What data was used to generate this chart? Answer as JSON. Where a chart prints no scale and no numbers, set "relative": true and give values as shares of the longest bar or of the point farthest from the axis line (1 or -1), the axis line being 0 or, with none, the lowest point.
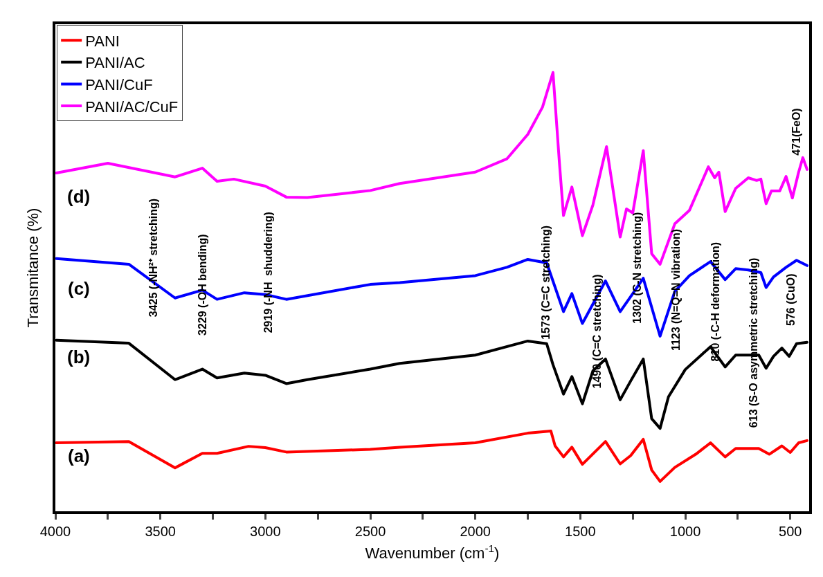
{
  "chart_data": {
    "type": "line",
    "relative": true,
    "xlabel": "Wavenumber (cm$^{-1}$)",
    "ylabel": "Transmitance (%)",
    "xlim": [
      4000,
      410
    ],
    "xticks": [
      4000,
      {
        "value": 3750,
        "label": null
      },
      3500,
      {
        "value": 3250,
        "label": null
      },
      3000,
      {
        "value": 2750,
        "label": null
      },
      2500,
      {
        "value": 2250,
        "label": null
      },
      2000,
      {
        "value": 1750,
        "label": null
      },
      1500,
      {
        "value": 1250,
        "label": null
      },
      1000,
      {
        "value": 750,
        "label": null
      },
      500
    ],
    "tick_labels": "x",
    "legend": "top left",
    "marker": "none",
    "line_style": "solid",
    "series": [
      {
        "name": "PANI",
        "color": "#ff0000",
        "x": [
          3995,
          3650,
          3430,
          3300,
          3230,
          3080,
          3000,
          2900,
          2500,
          2360,
          2000,
          1750,
          1640,
          1620,
          1580,
          1540,
          1490,
          1380,
          1310,
          1260,
          1200,
          1160,
          1120,
          1050,
          950,
          880,
          810,
          760,
          650,
          600,
          540,
          500,
          460,
          420
        ],
        "values": [
          0.156,
          0.159,
          0.099,
          0.132,
          0.132,
          0.148,
          0.145,
          0.135,
          0.141,
          0.146,
          0.156,
          0.178,
          0.183,
          0.149,
          0.124,
          0.146,
          0.107,
          0.159,
          0.108,
          0.127,
          0.164,
          0.094,
          0.068,
          0.1,
          0.13,
          0.156,
          0.124,
          0.143,
          0.143,
          0.13,
          0.149,
          0.134,
          0.156,
          0.161
        ]
      },
      {
        "name": "PANI/AC",
        "color": "#000000",
        "x": [
          3995,
          3650,
          3430,
          3300,
          3230,
          3100,
          3000,
          2900,
          2800,
          2500,
          2360,
          2000,
          1750,
          1660,
          1630,
          1580,
          1540,
          1490,
          1440,
          1380,
          1310,
          1260,
          1200,
          1160,
          1120,
          1080,
          1000,
          880,
          810,
          760,
          650,
          615,
          580,
          540,
          505,
          470,
          420
        ],
        "values": [
          0.39,
          0.383,
          0.3,
          0.324,
          0.304,
          0.315,
          0.31,
          0.291,
          0.3,
          0.324,
          0.337,
          0.356,
          0.388,
          0.382,
          0.334,
          0.267,
          0.307,
          0.245,
          0.32,
          0.347,
          0.254,
          0.297,
          0.347,
          0.211,
          0.189,
          0.261,
          0.323,
          0.375,
          0.329,
          0.356,
          0.356,
          0.326,
          0.353,
          0.372,
          0.353,
          0.382,
          0.385
        ]
      },
      {
        "name": "PANI/CuF",
        "color": "#0000ff",
        "x": [
          3995,
          3650,
          3430,
          3300,
          3230,
          3100,
          3000,
          2900,
          2500,
          2360,
          2000,
          1850,
          1750,
          1660,
          1580,
          1540,
          1490,
          1380,
          1310,
          1250,
          1200,
          1120,
          1050,
          980,
          880,
          810,
          760,
          700,
          640,
          615,
          580,
          520,
          470,
          420
        ],
        "values": [
          0.576,
          0.563,
          0.486,
          0.504,
          0.483,
          0.498,
          0.494,
          0.483,
          0.517,
          0.521,
          0.537,
          0.556,
          0.574,
          0.566,
          0.455,
          0.496,
          0.428,
          0.525,
          0.455,
          0.496,
          0.531,
          0.399,
          0.501,
          0.537,
          0.569,
          0.528,
          0.553,
          0.55,
          0.544,
          0.51,
          0.534,
          0.556,
          0.572,
          0.56
        ]
      },
      {
        "name": "PANI/AC/CuF",
        "color": "#ff00ff",
        "x": [
          3995,
          3750,
          3430,
          3300,
          3230,
          3150,
          3000,
          2900,
          2800,
          2500,
          2360,
          2000,
          1850,
          1750,
          1680,
          1630,
          1600,
          1580,
          1540,
          1490,
          1440,
          1375,
          1310,
          1280,
          1250,
          1200,
          1160,
          1120,
          1050,
          980,
          890,
          860,
          840,
          810,
          760,
          700,
          660,
          640,
          615,
          590,
          550,
          520,
          490,
          460,
          440,
          420
        ],
        "values": [
          0.771,
          0.793,
          0.762,
          0.782,
          0.752,
          0.757,
          0.741,
          0.716,
          0.715,
          0.731,
          0.747,
          0.773,
          0.803,
          0.859,
          0.921,
          1,
          0.798,
          0.674,
          0.739,
          0.628,
          0.698,
          0.831,
          0.625,
          0.689,
          0.68,
          0.822,
          0.587,
          0.563,
          0.655,
          0.686,
          0.785,
          0.76,
          0.773,
          0.683,
          0.736,
          0.76,
          0.754,
          0.757,
          0.701,
          0.73,
          0.73,
          0.763,
          0.714,
          0.773,
          0.806,
          0.779
        ]
      }
    ],
    "annotations": [
      "3425 (-NH²⁺ stretching)",
      "3229 (-OH bending)",
      "2919 (-NH  shuddering)",
      "1573 (C=C stretching)",
      "1490 (C=C stretching)",
      "1302 (C-N stretching)",
      "1123 (N=Q=N vibration)",
      "810 (-C-H deformation)",
      "613 (S-O asymmetric stretching)",
      "576 (CuO)",
      "471(FeO)",
      "(a)",
      "(b)",
      "(c)",
      "(d)"
    ]
  }
}
